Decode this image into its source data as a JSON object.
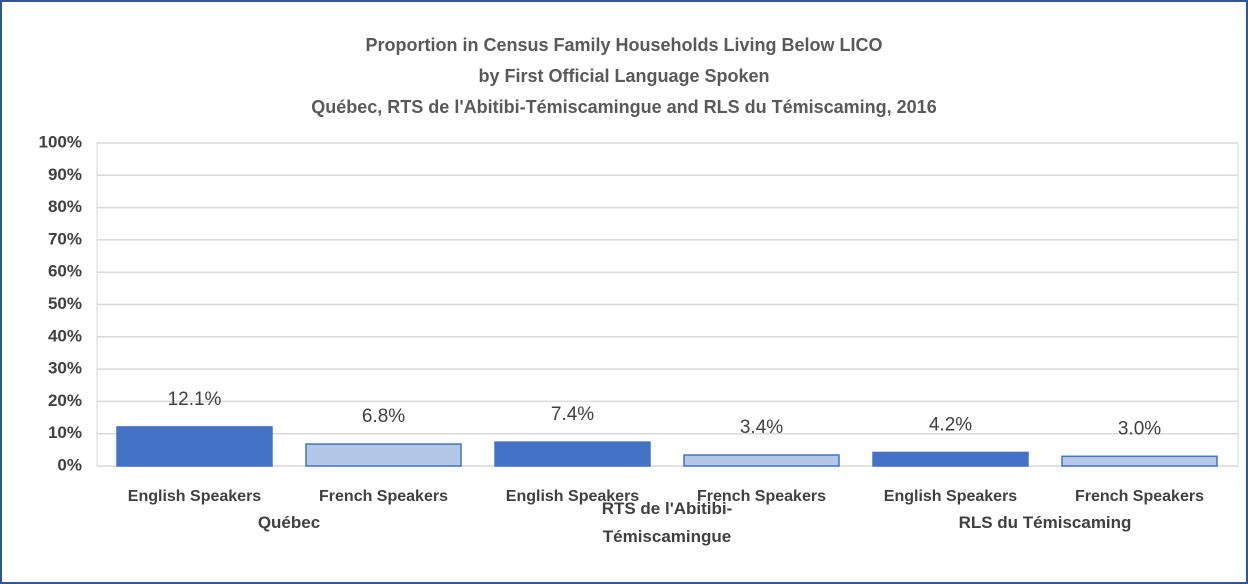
{
  "chart_data": {
    "type": "bar",
    "title": [
      "Proportion in Census Family Households Living Below LICO",
      "by First Official Language Spoken",
      "Québec, RTS de l'Abitibi-Témiscamingue and RLS du Témiscaming, 2016"
    ],
    "categories": [
      "English Speakers",
      "French Speakers",
      "English Speakers",
      "French Speakers",
      "English Speakers",
      "French Speakers"
    ],
    "groups": [
      "Québec",
      "RTS de l'Abitibi-Témiscamingue",
      "RLS du Témiscaming"
    ],
    "values": [
      12.1,
      6.8,
      7.4,
      3.4,
      4.2,
      3.0
    ],
    "value_labels": [
      "12.1%",
      "6.8%",
      "7.4%",
      "3.4%",
      "4.2%",
      "3.0%"
    ],
    "colors": [
      "#4472c4",
      "#b4c7e7",
      "#4472c4",
      "#b4c7e7",
      "#4472c4",
      "#b4c7e7"
    ],
    "edge_color": "#4472c4",
    "ylim": [
      0,
      100
    ],
    "yticks": [
      {
        "value": 0,
        "label": "0%"
      },
      {
        "value": 10,
        "label": "10%"
      },
      {
        "value": 20,
        "label": "20%"
      },
      {
        "value": 30,
        "label": "30%"
      },
      {
        "value": 40,
        "label": "40%"
      },
      {
        "value": 50,
        "label": "50%"
      },
      {
        "value": 60,
        "label": "60%"
      },
      {
        "value": 70,
        "label": "70%"
      },
      {
        "value": 80,
        "label": "80%"
      },
      {
        "value": 90,
        "label": "90%"
      },
      {
        "value": 100,
        "label": "100%"
      }
    ],
    "grid": true
  }
}
